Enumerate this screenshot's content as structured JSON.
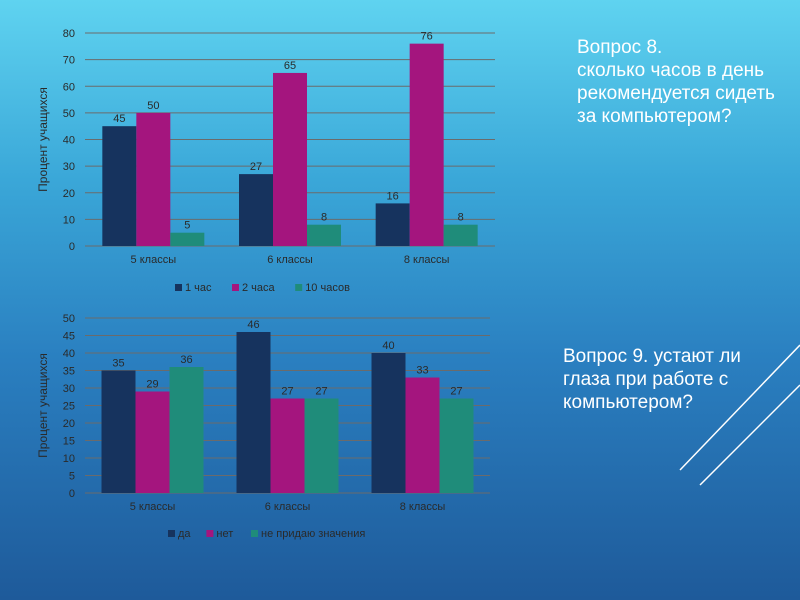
{
  "questions": {
    "q8": "Вопрос 8.\nсколько часов в день рекомендуется сидеть за компьютером?",
    "q9": "Вопрос 9. устают ли глаза при работе с компьютером?"
  },
  "colors": {
    "series1": "#16335e",
    "series2": "#a4157e",
    "series3": "#1f8c7a",
    "gridline": "#6b6b6b",
    "text": "#2a2a2a"
  },
  "chart_data": [
    {
      "type": "bar",
      "title": "",
      "xlabel": "",
      "ylabel": "Процент учащихся",
      "ylim": [
        0,
        80
      ],
      "yticks": [
        0,
        10,
        20,
        30,
        40,
        50,
        60,
        70,
        80
      ],
      "categories": [
        "5 классы",
        "6 классы",
        "8 классы"
      ],
      "series": [
        {
          "name": "1 час",
          "values": [
            45,
            27,
            16
          ]
        },
        {
          "name": "2 часа",
          "values": [
            50,
            65,
            76
          ]
        },
        {
          "name": "10 часов",
          "values": [
            5,
            8,
            8
          ]
        }
      ],
      "legend": "bottom"
    },
    {
      "type": "bar",
      "title": "",
      "xlabel": "",
      "ylabel": "Процент учащихся",
      "ylim": [
        0,
        50
      ],
      "yticks": [
        0,
        5,
        10,
        15,
        20,
        25,
        30,
        35,
        40,
        45,
        50
      ],
      "categories": [
        "5 классы",
        "6 классы",
        "8 классы"
      ],
      "series": [
        {
          "name": "да",
          "values": [
            35,
            46,
            40
          ]
        },
        {
          "name": "нет",
          "values": [
            29,
            27,
            33
          ]
        },
        {
          "name": "не придаю значения",
          "values": [
            36,
            27,
            27
          ]
        }
      ],
      "legend": "bottom"
    }
  ]
}
